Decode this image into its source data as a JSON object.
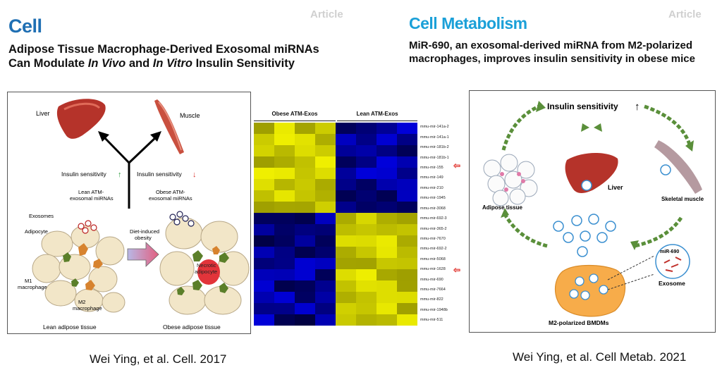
{
  "left": {
    "journal": "Cell",
    "tag": "Article",
    "title_parts": [
      "Adipose Tissue Macrophage-Derived Exosomal miRNAs Can Modulate ",
      "In Vivo",
      " and ",
      "In Vitro",
      " Insulin Sensitivity"
    ],
    "citation": "Wei Ying, et al. Cell. 2017",
    "figure": {
      "liver": "Liver",
      "muscle": "Muscle",
      "insulin_sensitivity_up": "Insulin sensitivity",
      "insulin_sensitivity_down": "Insulin sensitivity",
      "lean_atm": [
        "Lean ATM-",
        "exosomal miRNAs"
      ],
      "obese_atm": [
        "Obese ATM-",
        "exosomal miRNAs"
      ],
      "exosomes": "Exosomes",
      "adipocyte": "Adipocyte",
      "m1": [
        "M1",
        "macrophage"
      ],
      "m2": [
        "M2",
        "macrophage"
      ],
      "diet": [
        "Diet-induced",
        "obesity"
      ],
      "necrotic": [
        "Necrotic",
        "adipocyte"
      ],
      "lean_tissue": "Lean adipose tissue",
      "obese_tissue": "Obese adipose tissue"
    }
  },
  "heatmap": {
    "group_obese": "Obese ATM-Exos",
    "group_lean": "Lean ATM-Exos",
    "rows": [
      "mmu-mir-141a-2",
      "mmu-mir-141a-1",
      "mmu-mir-181b-2",
      "mmu-mir-181b-1",
      "mmu-mir-155",
      "mmu-mir-149",
      "mmu-mir-210",
      "mmu-mir-1945",
      "mmu-mir-3068",
      "mmu-mir-692-3",
      "mmu-mir-365-2",
      "mmu-mir-7670",
      "mmu-mir-692-2",
      "mmu-mir-5068",
      "mmu-mir-1628",
      "mmu-mir-690",
      "mmu-mir-7664",
      "mmu-mir-822",
      "mmu-mir-1948b",
      "mmu-mir-511"
    ],
    "highlighted": [
      "mmu-mir-155",
      "mmu-mir-690"
    ],
    "arrow_glyph": "⇦"
  },
  "right": {
    "journal": "Cell Metabolism",
    "tag": "Article",
    "title": "MiR-690, an exosomal-derived miRNA from M2-polarized macrophages, improves insulin sensitivity in obese mice",
    "citation": "Wei Ying, et al. Cell Metab. 2021",
    "figure": {
      "insulin_sensitivity": "Insulin sensitivity",
      "up_arrow": "↑",
      "liver": "Liver",
      "adipose": "Adipose tissue",
      "skeletal_muscle": "Skeletal muscle",
      "mir690": "miR-690",
      "exosome": "Exosome",
      "bmdm": "M2-polarized BMDMs"
    }
  },
  "colors": {
    "cell_blue": "#1f6fb3",
    "cellmet_blue": "#1ba0d8",
    "liver": "#b5332a",
    "fat": "#f2e6c8",
    "m2": "#d7832f",
    "m1": "#5b7f2a",
    "green_arrow": "#5a8f3a"
  }
}
